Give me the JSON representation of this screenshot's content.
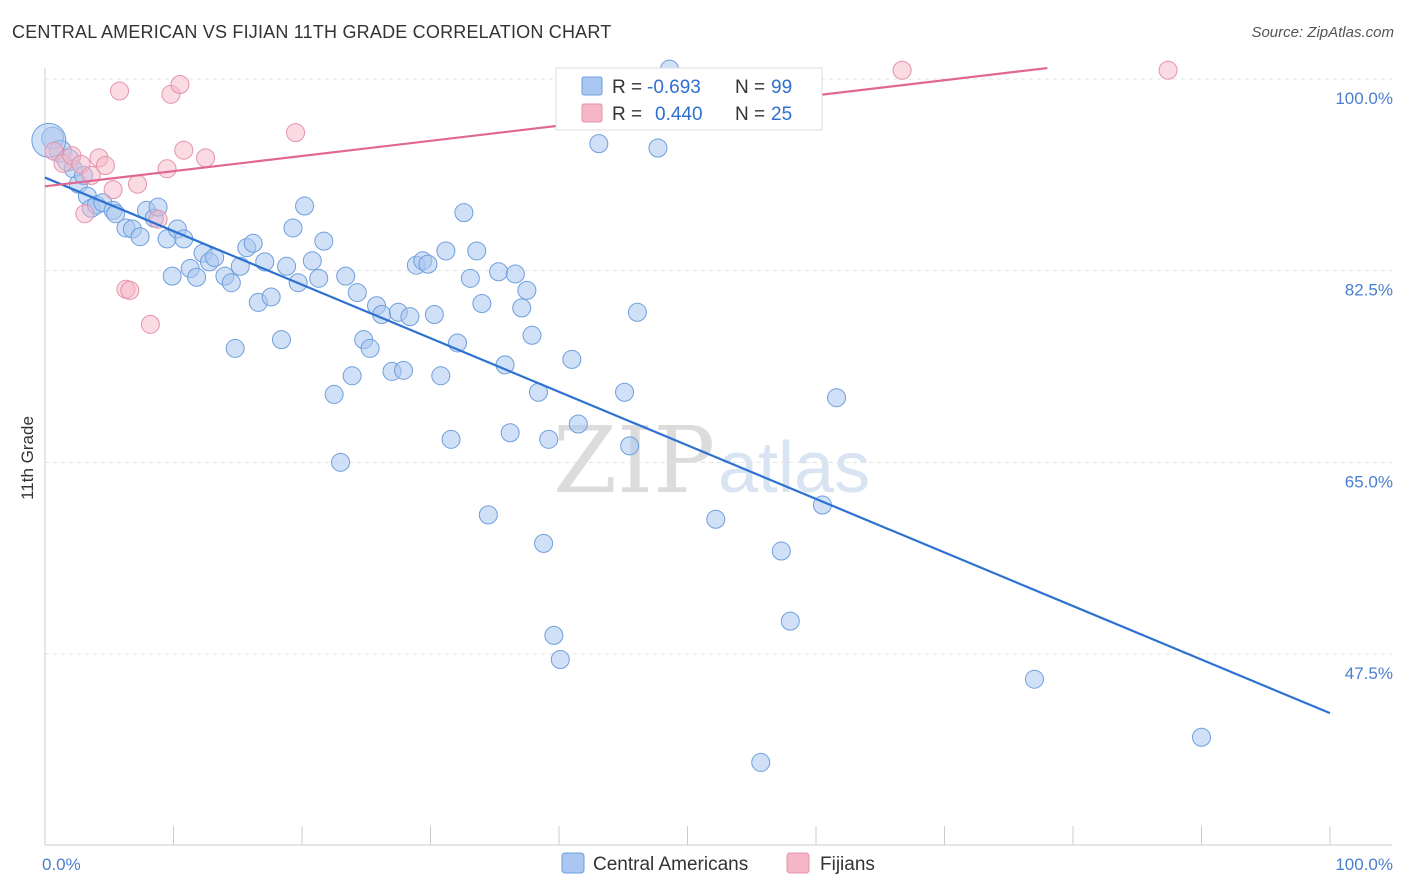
{
  "header": {
    "title": "CENTRAL AMERICAN VS FIJIAN 11TH GRADE CORRELATION CHART",
    "source": "Source: ZipAtlas.com"
  },
  "watermark": {
    "zip": "ZIP",
    "atlas": "atlas"
  },
  "legend": {
    "rows": [
      {
        "r_label": "R =",
        "r_value": "-0.693",
        "n_label": "N =",
        "n_value": "99",
        "color": "#a9c7f0"
      },
      {
        "r_label": "R =",
        "r_value": "0.440",
        "n_label": "N =",
        "n_value": "25",
        "color": "#f5b7c8"
      }
    ]
  },
  "bottom_legend": [
    "Central Americans",
    "Fijians"
  ],
  "chart_data": {
    "type": "scatter",
    "ylabel": "11th Grade",
    "xlabel": "",
    "xlim": [
      0,
      100
    ],
    "ylim": [
      31,
      102
    ],
    "x_tick_labels": [
      "0.0%",
      "100.0%"
    ],
    "y_ticks": [
      47.5,
      65.0,
      82.5,
      100.0
    ],
    "y_tick_labels": [
      "47.5%",
      "65.0%",
      "82.5%",
      "100.0%"
    ],
    "grid": "horizontal dashed",
    "legend_position": "top-center",
    "series": [
      {
        "name": "Central Americans",
        "color": "#a9c7f0",
        "stroke": "#6f9fdc",
        "trend": {
          "x": [
            0,
            100
          ],
          "y": [
            91.0,
            42.1
          ],
          "color": "#2d72d2"
        },
        "points": [
          [
            0.6,
            94.6
          ],
          [
            1.2,
            93.4
          ],
          [
            1.8,
            92.6
          ],
          [
            2.2,
            91.8
          ],
          [
            2.6,
            90.4
          ],
          [
            3.0,
            91.2
          ],
          [
            3.3,
            89.3
          ],
          [
            3.6,
            88.2
          ],
          [
            4.0,
            88.5
          ],
          [
            4.5,
            88.7
          ],
          [
            5.3,
            88.0
          ],
          [
            5.5,
            87.7
          ],
          [
            6.3,
            86.4
          ],
          [
            6.8,
            86.3
          ],
          [
            7.4,
            85.6
          ],
          [
            7.9,
            88.0
          ],
          [
            8.5,
            87.3
          ],
          [
            8.8,
            88.3
          ],
          [
            9.5,
            85.4
          ],
          [
            9.9,
            82.0
          ],
          [
            10.3,
            86.3
          ],
          [
            10.8,
            85.4
          ],
          [
            11.3,
            82.7
          ],
          [
            11.8,
            81.9
          ],
          [
            12.3,
            84.1
          ],
          [
            12.8,
            83.3
          ],
          [
            13.2,
            83.7
          ],
          [
            14.0,
            82.0
          ],
          [
            14.5,
            81.4
          ],
          [
            14.8,
            75.4
          ],
          [
            15.2,
            82.9
          ],
          [
            15.7,
            84.6
          ],
          [
            16.2,
            85.0
          ],
          [
            16.6,
            79.6
          ],
          [
            17.1,
            83.3
          ],
          [
            17.6,
            80.1
          ],
          [
            18.4,
            76.2
          ],
          [
            18.8,
            82.9
          ],
          [
            19.3,
            86.4
          ],
          [
            19.7,
            81.4
          ],
          [
            20.2,
            88.4
          ],
          [
            20.8,
            83.4
          ],
          [
            21.3,
            81.8
          ],
          [
            21.7,
            85.2
          ],
          [
            22.5,
            71.2
          ],
          [
            23.0,
            65.0
          ],
          [
            23.4,
            82.0
          ],
          [
            23.9,
            72.9
          ],
          [
            24.3,
            80.5
          ],
          [
            24.8,
            76.2
          ],
          [
            25.3,
            75.4
          ],
          [
            25.8,
            79.3
          ],
          [
            26.2,
            78.5
          ],
          [
            27.0,
            73.3
          ],
          [
            27.5,
            78.7
          ],
          [
            27.9,
            73.4
          ],
          [
            28.4,
            78.3
          ],
          [
            28.9,
            83.0
          ],
          [
            29.4,
            83.4
          ],
          [
            29.8,
            83.1
          ],
          [
            30.3,
            78.5
          ],
          [
            30.8,
            72.9
          ],
          [
            31.2,
            84.3
          ],
          [
            31.6,
            67.1
          ],
          [
            32.1,
            75.9
          ],
          [
            32.6,
            87.8
          ],
          [
            33.1,
            81.8
          ],
          [
            33.6,
            84.3
          ],
          [
            34.0,
            79.5
          ],
          [
            34.5,
            60.2
          ],
          [
            35.3,
            82.4
          ],
          [
            35.8,
            73.9
          ],
          [
            36.2,
            67.7
          ],
          [
            36.6,
            82.2
          ],
          [
            37.1,
            79.1
          ],
          [
            37.5,
            80.7
          ],
          [
            37.9,
            76.6
          ],
          [
            38.4,
            71.4
          ],
          [
            38.8,
            57.6
          ],
          [
            39.2,
            67.1
          ],
          [
            39.6,
            49.2
          ],
          [
            40.1,
            47.0
          ],
          [
            41.0,
            74.4
          ],
          [
            41.5,
            68.5
          ],
          [
            43.1,
            94.1
          ],
          [
            45.1,
            71.4
          ],
          [
            45.5,
            66.5
          ],
          [
            46.1,
            78.7
          ],
          [
            47.7,
            93.7
          ],
          [
            48.6,
            100.9
          ],
          [
            52.2,
            59.8
          ],
          [
            55.7,
            37.6
          ],
          [
            57.3,
            56.9
          ],
          [
            58.0,
            50.5
          ],
          [
            60.5,
            61.1
          ],
          [
            61.6,
            70.9
          ],
          [
            77.0,
            45.2
          ],
          [
            90.0,
            39.9
          ],
          [
            0.3,
            94.4
          ]
        ]
      },
      {
        "name": "Fijians",
        "color": "#f5b7c8",
        "stroke": "#e493ab",
        "trend": {
          "x": [
            0,
            78.0
          ],
          "y": [
            90.2,
            101.0
          ],
          "color": "#e06890"
        },
        "points": [
          [
            0.7,
            93.4
          ],
          [
            1.4,
            92.3
          ],
          [
            2.1,
            93.0
          ],
          [
            2.8,
            92.2
          ],
          [
            3.1,
            87.7
          ],
          [
            3.6,
            91.2
          ],
          [
            4.2,
            92.8
          ],
          [
            4.7,
            92.1
          ],
          [
            5.3,
            89.9
          ],
          [
            5.8,
            98.9
          ],
          [
            6.3,
            80.8
          ],
          [
            6.6,
            80.7
          ],
          [
            8.2,
            77.6
          ],
          [
            8.8,
            87.2
          ],
          [
            9.5,
            91.8
          ],
          [
            9.8,
            98.6
          ],
          [
            10.5,
            99.5
          ],
          [
            10.8,
            93.5
          ],
          [
            12.5,
            92.8
          ],
          [
            19.5,
            95.1
          ],
          [
            49.0,
            98.7
          ],
          [
            49.6,
            97.1
          ],
          [
            66.7,
            100.8
          ],
          [
            87.4,
            100.8
          ],
          [
            7.2,
            90.4
          ]
        ]
      }
    ]
  }
}
